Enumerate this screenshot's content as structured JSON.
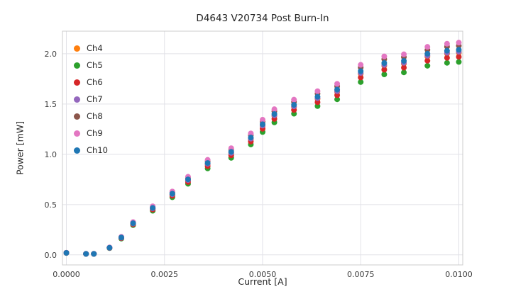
{
  "chart_data": {
    "type": "scatter",
    "title": "D4643 V20734 Post Burn-In",
    "xlabel": "Current [A]",
    "ylabel": "Power [mW]",
    "xlim": [
      -0.0001,
      0.0101
    ],
    "ylim": [
      -0.1,
      2.225
    ],
    "xticks": [
      0.0,
      0.0025,
      0.005,
      0.0075,
      0.01
    ],
    "xtick_labels": [
      "0.0000",
      "0.0025",
      "0.0050",
      "0.0075",
      "0.0100"
    ],
    "yticks": [
      0.0,
      0.5,
      1.0,
      1.5,
      2.0
    ],
    "ytick_labels": [
      "0.0",
      "0.5",
      "1.0",
      "1.5",
      "2.0"
    ],
    "grid": true,
    "legend_position": "upper left",
    "x": [
      0.0,
      0.0005,
      0.0007,
      0.0011,
      0.0014,
      0.0017,
      0.0022,
      0.0027,
      0.0031,
      0.0036,
      0.0042,
      0.0047,
      0.005,
      0.0053,
      0.0058,
      0.0064,
      0.0069,
      0.0075,
      0.0081,
      0.0086,
      0.0092,
      0.0097,
      0.01
    ],
    "series": [
      {
        "name": "Ch4",
        "color": "#ff7f0e",
        "y": [
          0.02,
          0.01,
          0.01,
          0.07,
          0.17,
          0.31,
          0.46,
          0.6,
          0.74,
          0.9,
          1.01,
          1.15,
          1.28,
          1.38,
          1.47,
          1.55,
          1.62,
          1.8,
          1.88,
          1.9,
          1.97,
          2.0,
          2.01
        ]
      },
      {
        "name": "Ch5",
        "color": "#2ca02c",
        "y": [
          0.019,
          0.01,
          0.01,
          0.067,
          0.162,
          0.296,
          0.439,
          0.573,
          0.707,
          0.86,
          0.965,
          1.098,
          1.222,
          1.318,
          1.404,
          1.48,
          1.547,
          1.719,
          1.795,
          1.815,
          1.881,
          1.91,
          1.919
        ]
      },
      {
        "name": "Ch6",
        "color": "#d62728",
        "y": [
          0.02,
          0.01,
          0.01,
          0.069,
          0.167,
          0.304,
          0.451,
          0.588,
          0.725,
          0.882,
          0.99,
          1.127,
          1.254,
          1.352,
          1.441,
          1.519,
          1.588,
          1.764,
          1.842,
          1.862,
          1.931,
          1.96,
          1.97
        ]
      },
      {
        "name": "Ch7",
        "color": "#9467bd",
        "y": [
          0.02,
          0.01,
          0.01,
          0.07,
          0.171,
          0.312,
          0.462,
          0.603,
          0.744,
          0.905,
          1.015,
          1.156,
          1.286,
          1.387,
          1.477,
          1.558,
          1.628,
          1.809,
          1.889,
          1.91,
          1.98,
          2.01,
          2.02
        ]
      },
      {
        "name": "Ch8",
        "color": "#8c564b",
        "y": [
          0.021,
          0.01,
          0.01,
          0.072,
          0.176,
          0.321,
          0.476,
          0.621,
          0.766,
          0.932,
          1.045,
          1.19,
          1.325,
          1.428,
          1.521,
          1.604,
          1.677,
          1.863,
          1.946,
          1.967,
          2.039,
          2.07,
          2.08
        ]
      },
      {
        "name": "Ch9",
        "color": "#e377c2",
        "y": [
          0.021,
          0.011,
          0.011,
          0.074,
          0.179,
          0.326,
          0.483,
          0.63,
          0.777,
          0.945,
          1.061,
          1.208,
          1.344,
          1.449,
          1.544,
          1.628,
          1.701,
          1.89,
          1.974,
          1.995,
          2.069,
          2.1,
          2.111
        ]
      },
      {
        "name": "Ch10",
        "color": "#1f77b4",
        "y": [
          0.02,
          0.01,
          0.01,
          0.071,
          0.173,
          0.315,
          0.467,
          0.609,
          0.751,
          0.914,
          1.025,
          1.167,
          1.299,
          1.401,
          1.492,
          1.573,
          1.644,
          1.827,
          1.908,
          1.929,
          2.0,
          2.03,
          2.04
        ]
      }
    ]
  }
}
